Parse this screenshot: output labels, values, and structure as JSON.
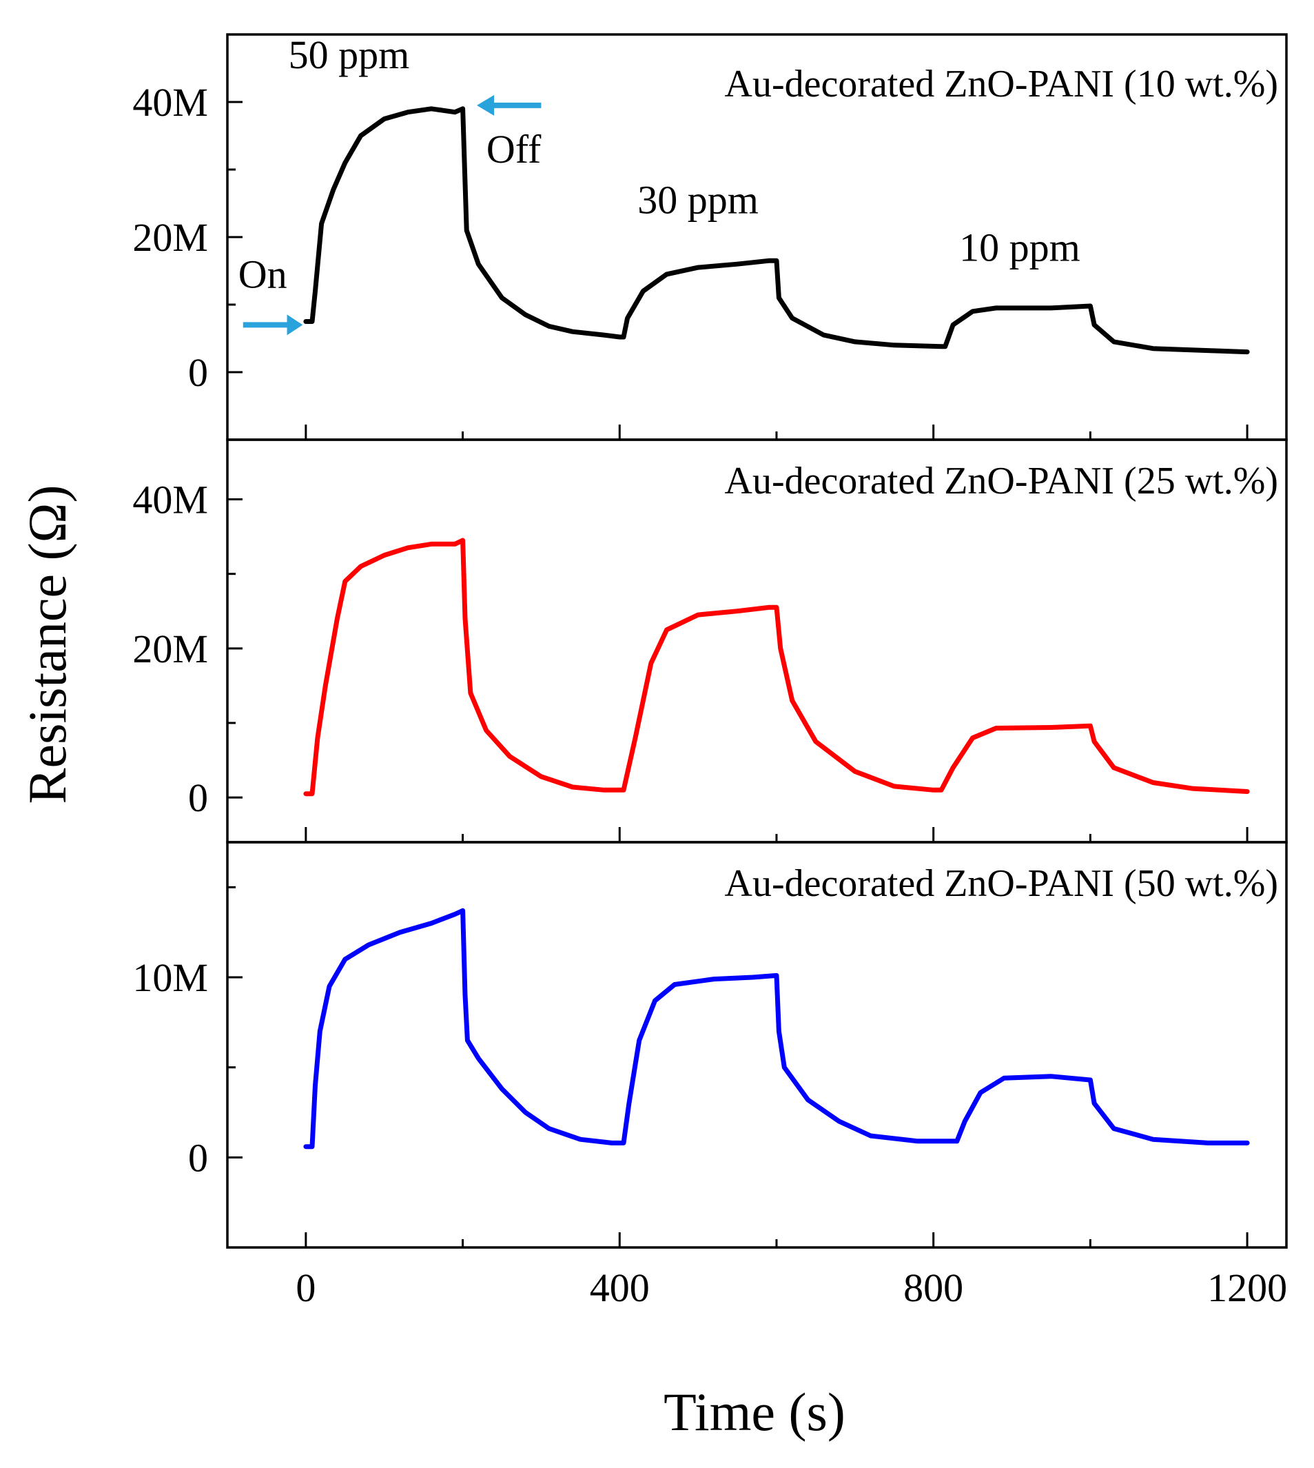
{
  "chart_data": {
    "type": "line",
    "xlabel": "Time (s)",
    "ylabel": "Resistance (Ω)",
    "xlim": [
      -100,
      1250
    ],
    "x_ticks": [
      0,
      400,
      800,
      1200
    ],
    "x_tick_labels": [
      "0",
      "400",
      "800",
      "1200"
    ],
    "x_minor_ticks": [
      200,
      600,
      1000
    ],
    "panels": [
      {
        "title": "Au-decorated ZnO-PANI (10 wt.%)",
        "color": "#000000",
        "ylim": [
          -10,
          50
        ],
        "y_ticks": [
          0,
          20,
          40
        ],
        "y_tick_labels": [
          "0",
          "20M",
          "40M"
        ],
        "y_minor_ticks": [
          10,
          30
        ],
        "points": [
          [
            0,
            7.5
          ],
          [
            8,
            7.5
          ],
          [
            12,
            12
          ],
          [
            20,
            22
          ],
          [
            35,
            27
          ],
          [
            50,
            31
          ],
          [
            70,
            35
          ],
          [
            100,
            37.5
          ],
          [
            130,
            38.5
          ],
          [
            160,
            39
          ],
          [
            190,
            38.5
          ],
          [
            200,
            39
          ],
          [
            203,
            28
          ],
          [
            205,
            21
          ],
          [
            220,
            16
          ],
          [
            250,
            11
          ],
          [
            280,
            8.5
          ],
          [
            310,
            6.8
          ],
          [
            340,
            6
          ],
          [
            380,
            5.5
          ],
          [
            400,
            5.2
          ],
          [
            405,
            5.2
          ],
          [
            410,
            8
          ],
          [
            430,
            12
          ],
          [
            460,
            14.5
          ],
          [
            500,
            15.5
          ],
          [
            550,
            16
          ],
          [
            590,
            16.5
          ],
          [
            600,
            16.5
          ],
          [
            603,
            11
          ],
          [
            620,
            8
          ],
          [
            660,
            5.5
          ],
          [
            700,
            4.5
          ],
          [
            750,
            4
          ],
          [
            810,
            3.8
          ],
          [
            815,
            3.8
          ],
          [
            825,
            7
          ],
          [
            850,
            9
          ],
          [
            880,
            9.5
          ],
          [
            950,
            9.5
          ],
          [
            1000,
            9.8
          ],
          [
            1005,
            7
          ],
          [
            1030,
            4.5
          ],
          [
            1080,
            3.5
          ],
          [
            1150,
            3.2
          ],
          [
            1200,
            3
          ]
        ],
        "annotations": {
          "on": "On",
          "off": "Off",
          "c50": "50 ppm",
          "c30": "30 ppm",
          "c10": "10 ppm"
        },
        "arrow_color": "#2aa3dc"
      },
      {
        "title": "Au-decorated ZnO-PANI (25 wt.%)",
        "color": "#ff0000",
        "ylim": [
          -6,
          48
        ],
        "y_ticks": [
          0,
          20,
          40
        ],
        "y_tick_labels": [
          "0",
          "20M",
          "40M"
        ],
        "y_minor_ticks": [
          10,
          30
        ],
        "points": [
          [
            0,
            0.5
          ],
          [
            8,
            0.5
          ],
          [
            15,
            8
          ],
          [
            25,
            15
          ],
          [
            40,
            24
          ],
          [
            50,
            29
          ],
          [
            70,
            31
          ],
          [
            100,
            32.5
          ],
          [
            130,
            33.5
          ],
          [
            160,
            34
          ],
          [
            190,
            34
          ],
          [
            200,
            34.5
          ],
          [
            203,
            24
          ],
          [
            210,
            14
          ],
          [
            230,
            9
          ],
          [
            260,
            5.5
          ],
          [
            300,
            2.8
          ],
          [
            340,
            1.4
          ],
          [
            380,
            1
          ],
          [
            400,
            1
          ],
          [
            405,
            1
          ],
          [
            420,
            8
          ],
          [
            440,
            18
          ],
          [
            460,
            22.5
          ],
          [
            500,
            24.5
          ],
          [
            550,
            25
          ],
          [
            590,
            25.5
          ],
          [
            600,
            25.5
          ],
          [
            605,
            20
          ],
          [
            620,
            13
          ],
          [
            650,
            7.5
          ],
          [
            700,
            3.5
          ],
          [
            750,
            1.5
          ],
          [
            800,
            1
          ],
          [
            810,
            1
          ],
          [
            825,
            4
          ],
          [
            850,
            8
          ],
          [
            880,
            9.3
          ],
          [
            950,
            9.4
          ],
          [
            1000,
            9.6
          ],
          [
            1005,
            7.5
          ],
          [
            1030,
            4
          ],
          [
            1080,
            2
          ],
          [
            1130,
            1.2
          ],
          [
            1200,
            0.8
          ]
        ]
      },
      {
        "title": "Au-decorated ZnO-PANI (50 wt.%)",
        "color": "#0000ff",
        "ylim": [
          -5,
          17.5
        ],
        "y_ticks": [
          0,
          10
        ],
        "y_tick_labels": [
          "0",
          "10M"
        ],
        "y_minor_ticks": [
          5,
          15
        ],
        "points": [
          [
            0,
            0.6
          ],
          [
            8,
            0.6
          ],
          [
            12,
            4
          ],
          [
            18,
            7
          ],
          [
            30,
            9.5
          ],
          [
            50,
            11
          ],
          [
            80,
            11.8
          ],
          [
            120,
            12.5
          ],
          [
            160,
            13
          ],
          [
            190,
            13.5
          ],
          [
            200,
            13.7
          ],
          [
            203,
            9
          ],
          [
            206,
            6.5
          ],
          [
            220,
            5.5
          ],
          [
            250,
            3.8
          ],
          [
            280,
            2.5
          ],
          [
            310,
            1.6
          ],
          [
            350,
            1
          ],
          [
            390,
            0.8
          ],
          [
            405,
            0.8
          ],
          [
            412,
            3
          ],
          [
            425,
            6.5
          ],
          [
            445,
            8.7
          ],
          [
            470,
            9.6
          ],
          [
            520,
            9.9
          ],
          [
            570,
            10
          ],
          [
            600,
            10.1
          ],
          [
            603,
            7
          ],
          [
            610,
            5
          ],
          [
            640,
            3.2
          ],
          [
            680,
            2
          ],
          [
            720,
            1.2
          ],
          [
            780,
            0.9
          ],
          [
            830,
            0.9
          ],
          [
            840,
            2
          ],
          [
            860,
            3.6
          ],
          [
            890,
            4.4
          ],
          [
            950,
            4.5
          ],
          [
            1000,
            4.3
          ],
          [
            1005,
            3
          ],
          [
            1030,
            1.6
          ],
          [
            1080,
            1
          ],
          [
            1150,
            0.8
          ],
          [
            1200,
            0.8
          ]
        ]
      }
    ]
  }
}
